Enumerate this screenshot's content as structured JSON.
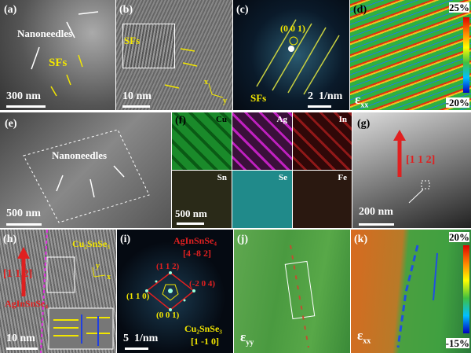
{
  "panels": {
    "a": {
      "label": "(a)",
      "texts": [
        "Nanoneedles",
        "SFs"
      ],
      "scale": "300 nm"
    },
    "b": {
      "label": "(b)",
      "texts": [
        "SFs",
        "x",
        "y"
      ],
      "scale": "10 nm"
    },
    "c": {
      "label": "(c)",
      "texts": [
        "(0 0 1)",
        "SFs"
      ],
      "scale": "2  1/nm"
    },
    "d": {
      "label": "(d)",
      "colorbar": [
        "25%",
        "-20%"
      ],
      "strain": {
        "symbol": "ε",
        "sub": "xx"
      }
    },
    "e": {
      "label": "(e)",
      "texts": [
        "Nanoneedles"
      ],
      "scale": "500 nm"
    },
    "f": {
      "label": "(f)",
      "elements": [
        "Cu",
        "Ag",
        "In",
        "Sn",
        "Se",
        "Fe"
      ],
      "scale": "500 nm"
    },
    "g": {
      "label": "(g)",
      "texts": [
        "[1 1 2]"
      ],
      "scale": "200 nm"
    },
    "h": {
      "label": "(h)",
      "texts": [
        "Cu₂SnSe₃",
        "[1 1 2]",
        "AgInSnSe₄",
        "y",
        "x"
      ],
      "scale": "10 nm"
    },
    "i": {
      "label": "(i)",
      "texts": [
        "AgInSnSe₄",
        "[4 -8 2]",
        "(1 1 2)",
        "(-2 0 4)",
        "(1 1 0)",
        "(0 0 1)",
        "Cu₂SnSe₃",
        "[1 -1 0]"
      ],
      "scale": "5  1/nm"
    },
    "j": {
      "label": "(j)",
      "strain": {
        "symbol": "ε",
        "sub": "yy"
      }
    },
    "k": {
      "label": "(k)",
      "colorbar": [
        "20%",
        "-15%"
      ],
      "strain": {
        "symbol": "ε",
        "sub": "xx"
      }
    }
  }
}
